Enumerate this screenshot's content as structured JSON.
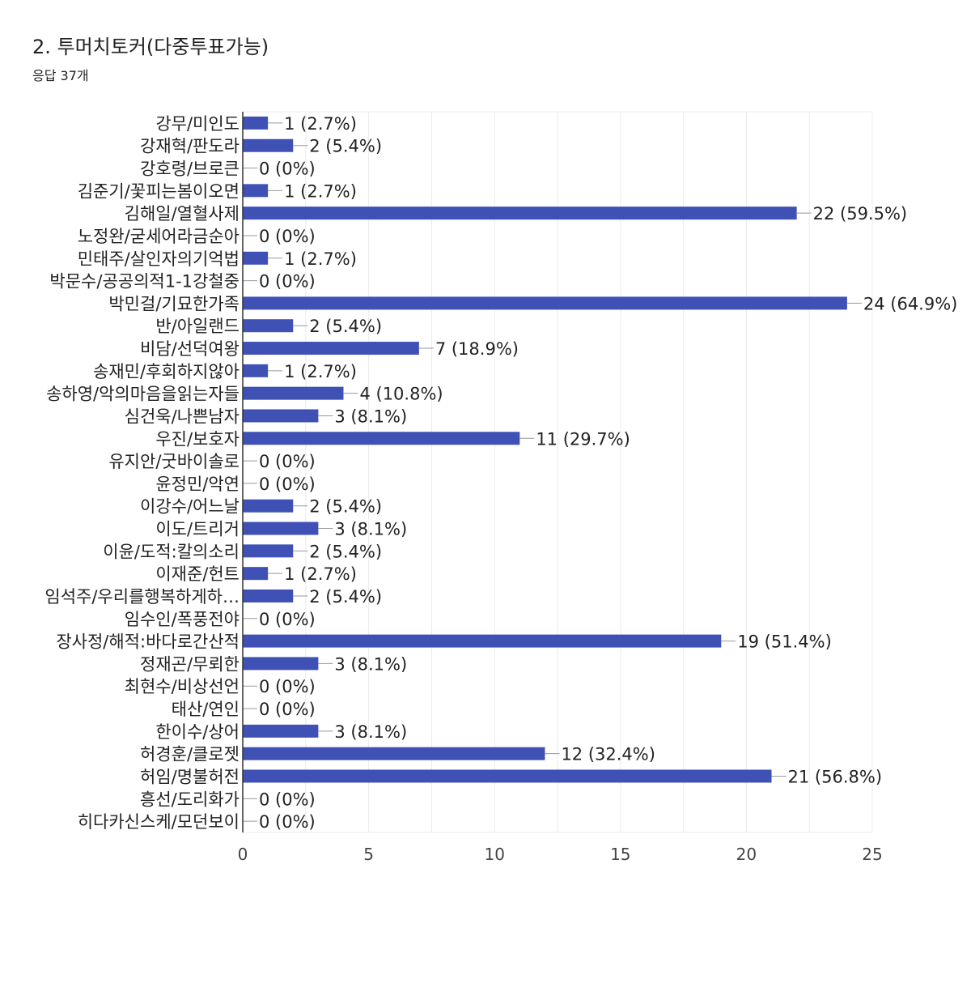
{
  "header": {
    "title": "2. 투머치토커(다중투표가능)",
    "subtitle": "응답 37개"
  },
  "colors": {
    "bar": "#3f51b5",
    "grid": "#ebebeb",
    "axis": "#333333",
    "text": "#222222",
    "tick": "#444444"
  },
  "chart_data": {
    "type": "bar",
    "orientation": "horizontal",
    "categories": [
      "강무/미인도",
      "강재혁/판도라",
      "강호령/브로큰",
      "김준기/꽃피는봄이오면",
      "김해일/열혈사제",
      "노정완/굳세어라금순아",
      "민태주/살인자의기억법",
      "박문수/공공의적1-1강철중",
      "박민걸/기묘한가족",
      "반/아일랜드",
      "비담/선덕여왕",
      "송재민/후회하지않아",
      "송하영/악의마음을읽는자들",
      "심건욱/나쁜남자",
      "우진/보호자",
      "유지안/굿바이솔로",
      "윤정민/악연",
      "이강수/어느날",
      "이도/트리거",
      "이윤/도적:칼의소리",
      "이재준/헌트",
      "임석주/우리를행복하게하…",
      "임수인/폭풍전야",
      "장사정/해적:바다로간산적",
      "정재곤/무뢰한",
      "최현수/비상선언",
      "태산/연인",
      "한이수/상어",
      "허경훈/클로젯",
      "허임/명불허전",
      "흥선/도리화가",
      "히다카신스케/모던보이"
    ],
    "values": [
      1,
      2,
      0,
      1,
      22,
      0,
      1,
      0,
      24,
      2,
      7,
      1,
      4,
      3,
      11,
      0,
      0,
      2,
      3,
      2,
      1,
      2,
      0,
      19,
      3,
      0,
      0,
      3,
      12,
      21,
      0,
      0
    ],
    "data_labels": [
      "1 (2.7%)",
      "2 (5.4%)",
      "0 (0%)",
      "1 (2.7%)",
      "22 (59.5%)",
      "0 (0%)",
      "1 (2.7%)",
      "0 (0%)",
      "24 (64.9%)",
      "2 (5.4%)",
      "7 (18.9%)",
      "1 (2.7%)",
      "4 (10.8%)",
      "3 (8.1%)",
      "11 (29.7%)",
      "0 (0%)",
      "0 (0%)",
      "2 (5.4%)",
      "3 (8.1%)",
      "2 (5.4%)",
      "1 (2.7%)",
      "2 (5.4%)",
      "0 (0%)",
      "19 (51.4%)",
      "3 (8.1%)",
      "0 (0%)",
      "0 (0%)",
      "3 (8.1%)",
      "12 (32.4%)",
      "21 (56.8%)",
      "0 (0%)",
      "0 (0%)"
    ],
    "xlim": [
      0,
      25
    ],
    "x_ticks": [
      "0",
      "5",
      "10",
      "15",
      "20",
      "25"
    ],
    "grid": true,
    "xlabel": "",
    "ylabel": ""
  }
}
